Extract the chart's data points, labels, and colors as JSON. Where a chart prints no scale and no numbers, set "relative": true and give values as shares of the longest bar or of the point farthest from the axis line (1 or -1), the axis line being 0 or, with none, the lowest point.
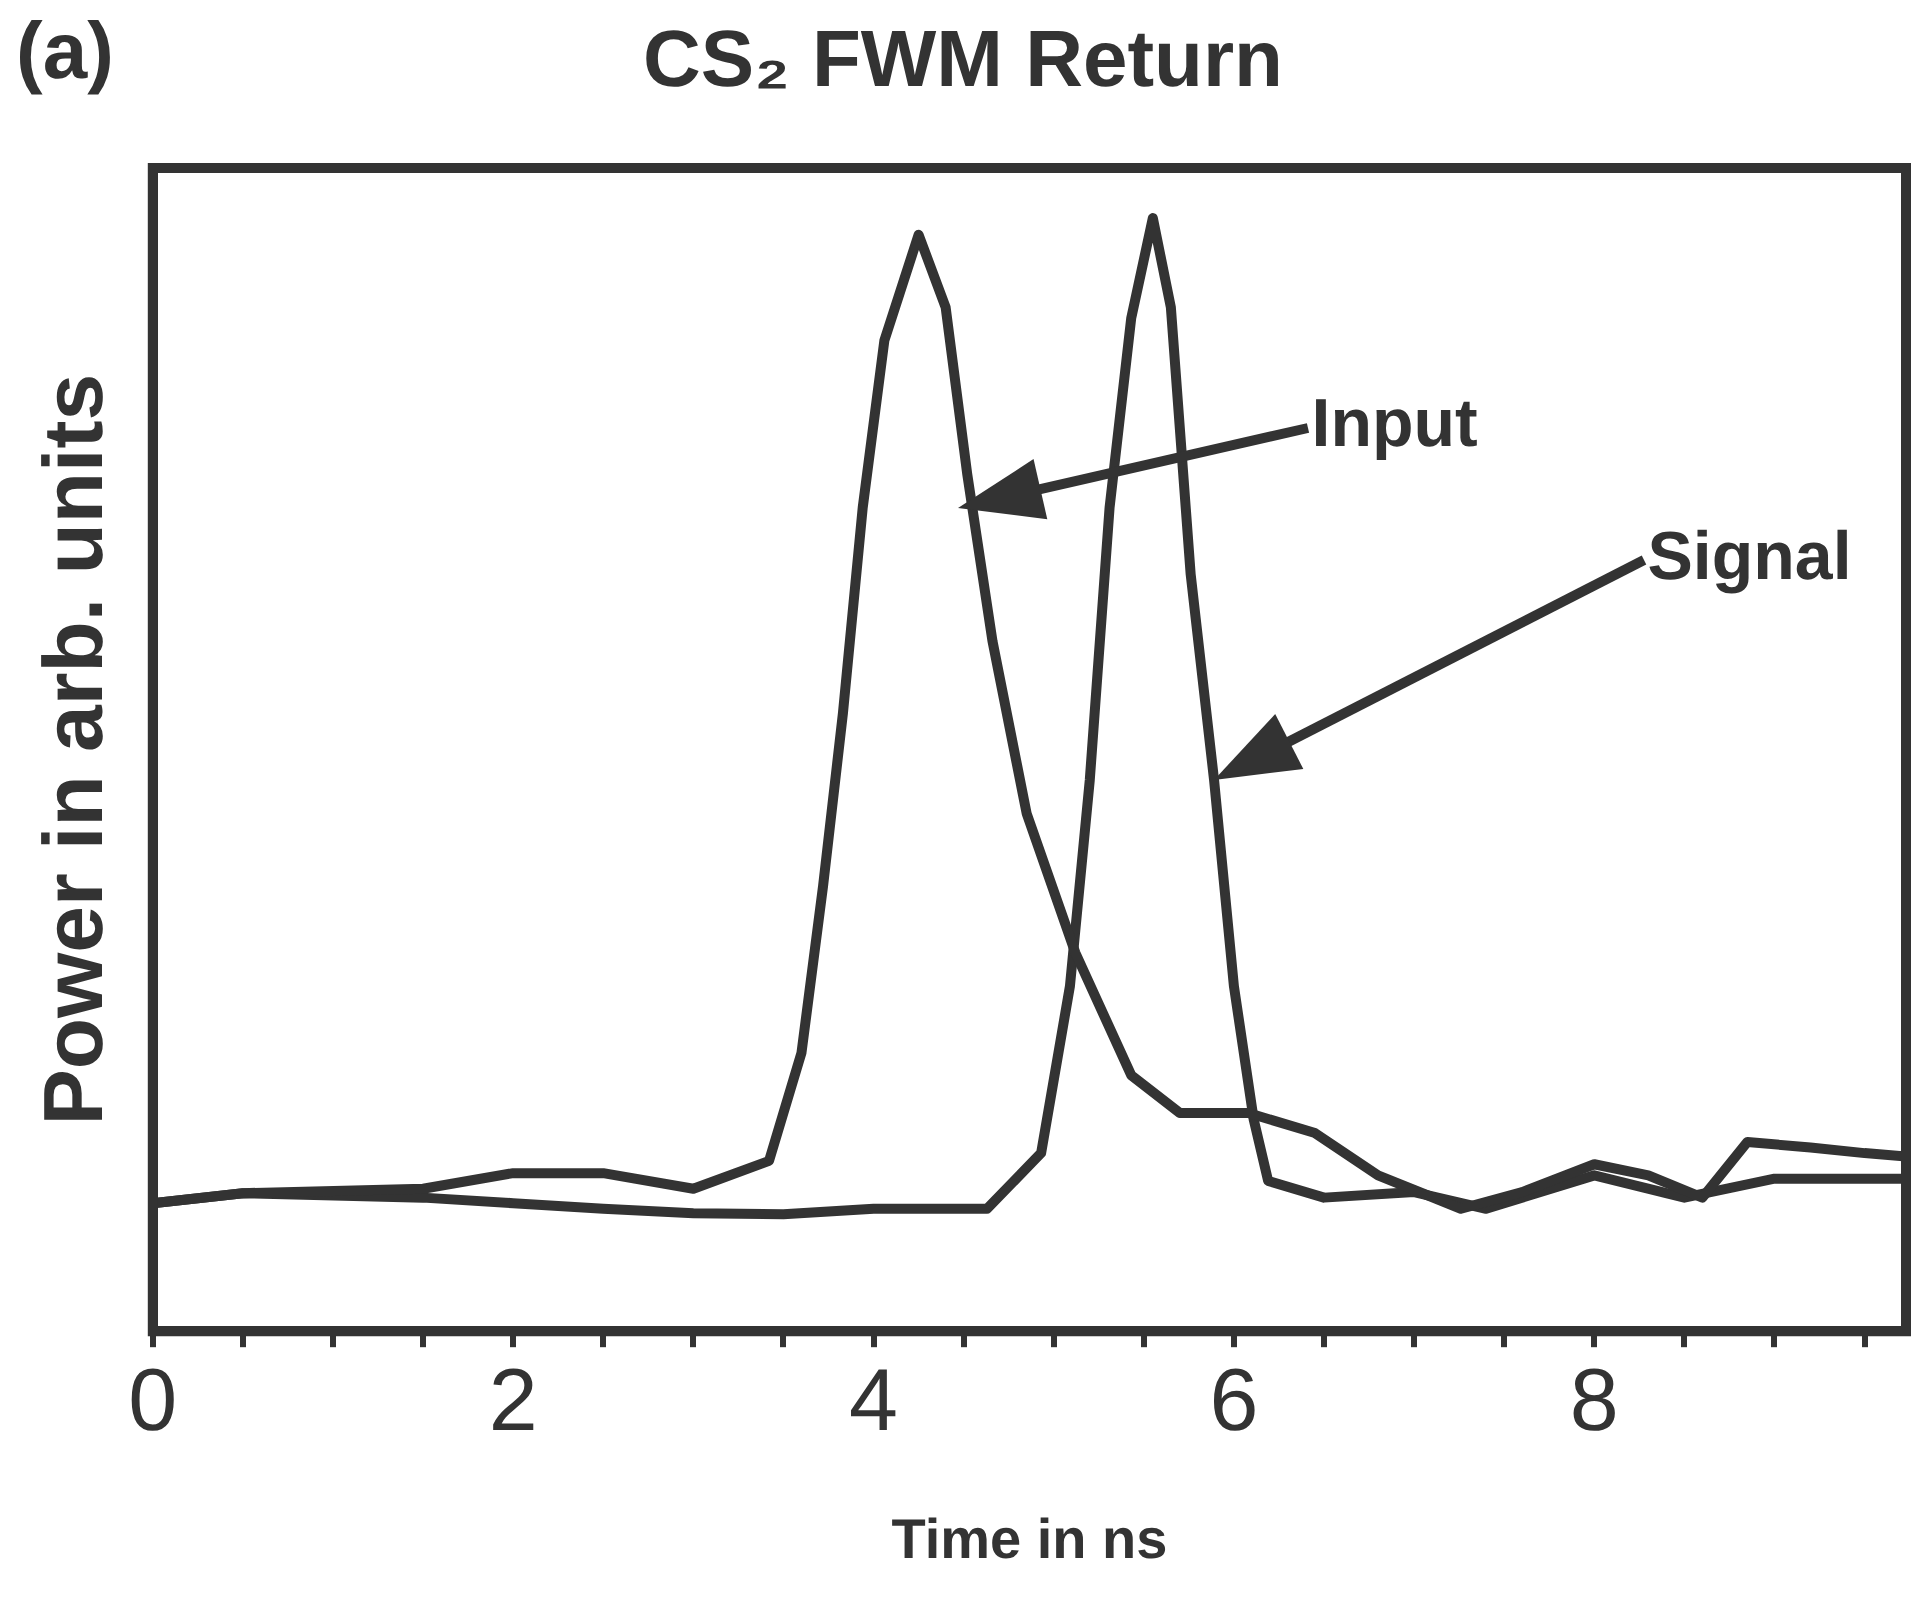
{
  "chart_data": {
    "type": "line",
    "title": "CS₂ FWM Return",
    "xlabel": "Time in ns",
    "ylabel": "Power in arb. units",
    "relative": true,
    "legend": false,
    "grid": false,
    "tick_labels": "x",
    "marker": "none",
    "line_style": "solid",
    "xlim": [
      0,
      9.73
    ],
    "xticks": [
      0,
      {
        "value": 0.5,
        "label": null
      },
      {
        "value": 1,
        "label": null
      },
      {
        "value": 1.5,
        "label": null
      },
      2,
      {
        "value": 2.5,
        "label": null
      },
      {
        "value": 3,
        "label": null
      },
      {
        "value": 3.5,
        "label": null
      },
      4,
      {
        "value": 4.5,
        "label": null
      },
      {
        "value": 5,
        "label": null
      },
      {
        "value": 5.5,
        "label": null
      },
      6,
      {
        "value": 6.5,
        "label": null
      },
      {
        "value": 7,
        "label": null
      },
      {
        "value": 7.5,
        "label": null
      },
      8,
      {
        "value": 8.5,
        "label": null
      },
      {
        "value": 9,
        "label": null
      },
      {
        "value": 9.5,
        "label": null
      }
    ],
    "series": [
      {
        "color": "#333333",
        "x": [
          0,
          0.5,
          1.5,
          2,
          2.5,
          3,
          3.42,
          3.6,
          3.72,
          3.83,
          3.94,
          4.06,
          4.25,
          4.4,
          4.52,
          4.66,
          4.85,
          5.12,
          5.43,
          5.7,
          6.08,
          6.45,
          6.8,
          7.26,
          7.6,
          8,
          8.3,
          8.6,
          8.85,
          9.2,
          9.5,
          9.73
        ],
        "values": [
          0.115,
          0.124,
          0.128,
          0.142,
          0.142,
          0.128,
          0.153,
          0.25,
          0.4,
          0.555,
          0.74,
          0.89,
          0.985,
          0.92,
          0.77,
          0.62,
          0.465,
          0.34,
          0.23,
          0.196,
          0.196,
          0.178,
          0.14,
          0.11,
          0.125,
          0.15,
          0.14,
          0.12,
          0.17,
          0.165,
          0.16,
          0.157
        ]
      },
      {
        "color": "#333333",
        "x": [
          0,
          0.5,
          1.5,
          2,
          2.5,
          3,
          3.5,
          4,
          4.63,
          4.93,
          5.09,
          5.2,
          5.31,
          5.43,
          5.55,
          5.65,
          5.76,
          5.89,
          6.0,
          6.11,
          6.19,
          6.5,
          7.0,
          7.4,
          8,
          8.5,
          9,
          9.5,
          9.73
        ],
        "values": [
          0.115,
          0.124,
          0.12,
          0.115,
          0.11,
          0.106,
          0.105,
          0.11,
          0.11,
          0.16,
          0.31,
          0.495,
          0.74,
          0.91,
          1.0,
          0.92,
          0.68,
          0.495,
          0.31,
          0.19,
          0.135,
          0.12,
          0.125,
          0.11,
          0.14,
          0.12,
          0.137,
          0.137,
          0.137
        ]
      }
    ],
    "annotations": [
      "Input",
      "Signal",
      "(a)"
    ]
  }
}
